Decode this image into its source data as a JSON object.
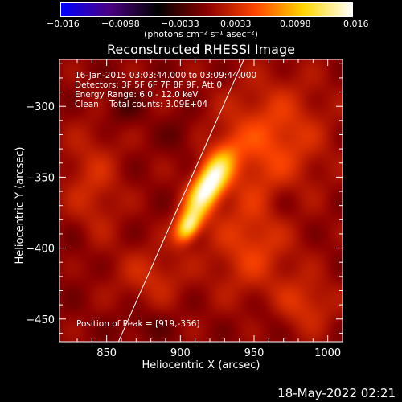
{
  "colorbar": {
    "ticks": [
      "−0.016",
      "−0.0098",
      "−0.0033",
      "0.0033",
      "0.0098",
      "0.016"
    ],
    "unit": "(photons cm⁻² s⁻¹ asec⁻²)"
  },
  "info": {
    "time_range": "16-Jan-2015 03:03:44.000 to 03:09:44.000",
    "detectors": "Detectors: 3F 5F 6F 7F 8F 9F, Att 0",
    "energy": "Energy Range: 6.0 - 12.0 keV",
    "clean": "Clean    Total counts: 3.09E+04",
    "peak": "Position of Peak = [919,-356]"
  },
  "timestamp": "18-May-2022 02:21",
  "chart_data": {
    "type": "heatmap",
    "title": "Reconstructed RHESSI Image",
    "xlabel": "Heliocentric X (arcsec)",
    "ylabel": "Heliocentric Y (arcsec)",
    "xlim": [
      818,
      1010
    ],
    "ylim": [
      -466,
      -267
    ],
    "xticks": [
      850,
      900,
      950,
      1000
    ],
    "yticks": [
      -300,
      -350,
      -400,
      -450
    ],
    "colorscale": {
      "range": [
        -0.016,
        0.016
      ],
      "stops": [
        "#0000ff",
        "#4b0082",
        "#000000",
        "#8b0000",
        "#ff4500",
        "#ffd700",
        "#ffffff"
      ]
    },
    "peak": {
      "x": 919,
      "y": -356,
      "value": 0.016
    },
    "sources": [
      {
        "x": 919,
        "y": -356,
        "sx": 7,
        "sy": 18,
        "angle_deg": 28,
        "value": 0.016
      },
      {
        "x": 905,
        "y": -385,
        "sx": 5,
        "sy": 8,
        "angle_deg": 28,
        "value": 0.011
      },
      {
        "x": 960,
        "y": -325,
        "sx": 25,
        "sy": 30,
        "angle_deg": 20,
        "value": 0.005
      },
      {
        "x": 948,
        "y": -400,
        "sx": 20,
        "sy": 25,
        "angle_deg": 0,
        "value": 0.004
      },
      {
        "x": 840,
        "y": -355,
        "sx": 14,
        "sy": 30,
        "angle_deg": 0,
        "value": 0.003
      },
      {
        "x": 880,
        "y": -420,
        "sx": 16,
        "sy": 14,
        "angle_deg": 0,
        "value": 0.003
      },
      {
        "x": 985,
        "y": -440,
        "sx": 14,
        "sy": 14,
        "angle_deg": 0,
        "value": 0.0035
      },
      {
        "x": 860,
        "y": -300,
        "sx": 10,
        "sy": 10,
        "angle_deg": 0,
        "value": -0.002
      },
      {
        "x": 900,
        "y": -320,
        "sx": 8,
        "sy": 10,
        "angle_deg": 0,
        "value": -0.0015
      },
      {
        "x": 970,
        "y": -370,
        "sx": 10,
        "sy": 12,
        "angle_deg": 0,
        "value": -0.0015
      },
      {
        "x": 875,
        "y": -455,
        "sx": 12,
        "sy": 8,
        "angle_deg": 0,
        "value": -0.0015
      },
      {
        "x": 958,
        "y": -448,
        "sx": 8,
        "sy": 10,
        "angle_deg": 0,
        "value": -0.001
      },
      {
        "x": 830,
        "y": -400,
        "sx": 8,
        "sy": 14,
        "angle_deg": 0,
        "value": -0.001
      }
    ],
    "limb_line": [
      [
        858,
        -466
      ],
      [
        943,
        -267
      ]
    ]
  }
}
